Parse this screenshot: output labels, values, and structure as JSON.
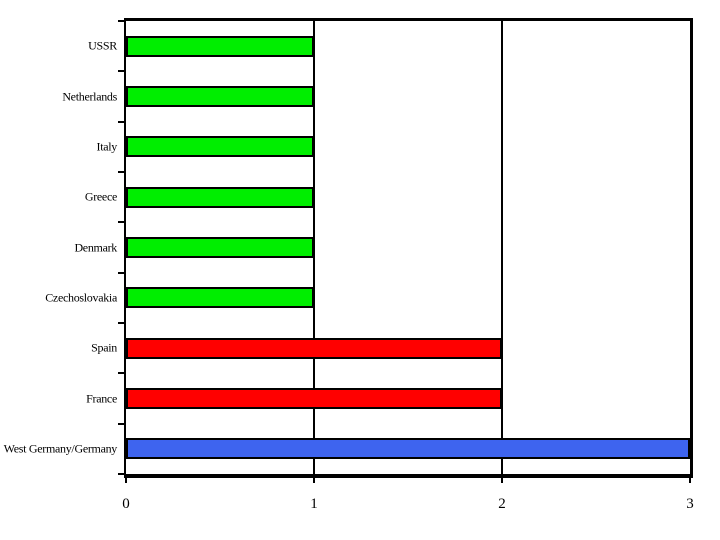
{
  "chart_data": {
    "type": "bar",
    "orientation": "horizontal",
    "title": "",
    "xlabel": "",
    "ylabel": "",
    "categories": [
      "USSR",
      "Netherlands",
      "Italy",
      "Greece",
      "Denmark",
      "Czechoslovakia",
      "Spain",
      "France",
      "West Germany/Germany"
    ],
    "values": [
      1,
      1,
      1,
      1,
      1,
      1,
      2,
      2,
      3
    ],
    "bar_colors": [
      "#00EE00",
      "#00EE00",
      "#00EE00",
      "#00EE00",
      "#00EE00",
      "#00EE00",
      "#FF0000",
      "#FF0000",
      "#3E64EF"
    ],
    "xlim": [
      0,
      3
    ],
    "x_ticks": [
      "0",
      "1",
      "2",
      "3"
    ],
    "x_tick_values": [
      0,
      1,
      2,
      3
    ],
    "gridlines_x": [
      1,
      2
    ],
    "grid": "vertical-only",
    "legend": "none",
    "frame_color": "#000000",
    "background_color": "#FFFFFF"
  }
}
